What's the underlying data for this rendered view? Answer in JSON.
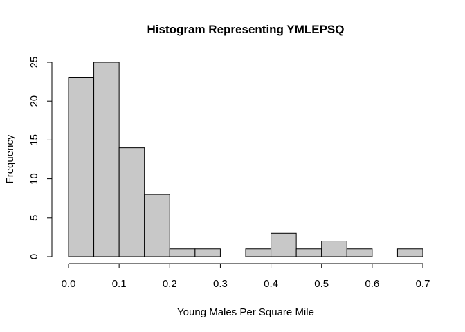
{
  "chart_data": {
    "type": "bar",
    "title": "Histogram Representing YMLEPSQ",
    "xlabel": "Young Males Per Square Mile",
    "ylabel": "Frequency",
    "bins": [
      {
        "from": 0.0,
        "to": 0.05,
        "count": 23
      },
      {
        "from": 0.05,
        "to": 0.1,
        "count": 25
      },
      {
        "from": 0.1,
        "to": 0.15,
        "count": 14
      },
      {
        "from": 0.15,
        "to": 0.2,
        "count": 8
      },
      {
        "from": 0.2,
        "to": 0.25,
        "count": 1
      },
      {
        "from": 0.25,
        "to": 0.3,
        "count": 1
      },
      {
        "from": 0.3,
        "to": 0.35,
        "count": 0
      },
      {
        "from": 0.35,
        "to": 0.4,
        "count": 1
      },
      {
        "from": 0.4,
        "to": 0.45,
        "count": 3
      },
      {
        "from": 0.45,
        "to": 0.5,
        "count": 1
      },
      {
        "from": 0.5,
        "to": 0.55,
        "count": 2
      },
      {
        "from": 0.55,
        "to": 0.6,
        "count": 1
      },
      {
        "from": 0.6,
        "to": 0.65,
        "count": 0
      },
      {
        "from": 0.65,
        "to": 0.7,
        "count": 1
      }
    ],
    "xlim": [
      0,
      0.7
    ],
    "ylim": [
      0,
      25
    ],
    "xticks": [
      "0.0",
      "0.1",
      "0.2",
      "0.3",
      "0.4",
      "0.5",
      "0.6",
      "0.7"
    ],
    "yticks": [
      "0",
      "5",
      "10",
      "15",
      "20",
      "25"
    ],
    "bar_color": "#c8c8c8",
    "grid": false
  }
}
